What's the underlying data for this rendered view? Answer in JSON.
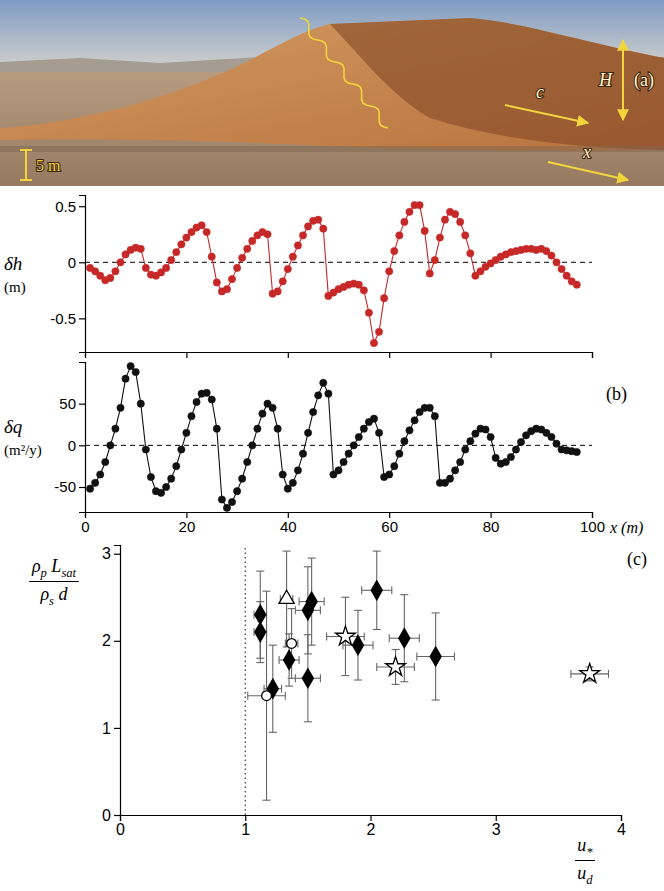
{
  "panel_a": {
    "panel_label": "(a)",
    "scale_label": "5 m",
    "labels": {
      "celerity": "c",
      "height": "H",
      "axis": "x"
    }
  },
  "chart_data": [
    {
      "type": "line",
      "panel_label": "(b)",
      "ylabel": [
        "δh",
        "(m)"
      ],
      "x": [
        1,
        2,
        3,
        4,
        5,
        6,
        7,
        8,
        9,
        10,
        11,
        12,
        13,
        14,
        15,
        16,
        17,
        18,
        19,
        20,
        21,
        22,
        23,
        24,
        25,
        26,
        27,
        28,
        29,
        30,
        31,
        32,
        33,
        34,
        35,
        36,
        37,
        38,
        39,
        40,
        41,
        42,
        43,
        44,
        45,
        46,
        47,
        48,
        49,
        50,
        51,
        52,
        53,
        54,
        55,
        56,
        57,
        58,
        59,
        60,
        61,
        62,
        63,
        64,
        65,
        66,
        67,
        68,
        69,
        70,
        71,
        72,
        73,
        74,
        75,
        76,
        77,
        78,
        79,
        80,
        81,
        82,
        83,
        84,
        85,
        86,
        87,
        88,
        89,
        90,
        91,
        92,
        93,
        94,
        95,
        96,
        97
      ],
      "series": [
        {
          "color": "#c62828",
          "marker": "circle",
          "line_style": "solid",
          "values": [
            -0.05,
            -0.08,
            -0.12,
            -0.16,
            -0.14,
            -0.08,
            0.0,
            0.07,
            0.11,
            0.13,
            0.12,
            -0.05,
            -0.11,
            -0.12,
            -0.09,
            -0.05,
            0.02,
            0.09,
            0.16,
            0.22,
            0.27,
            0.31,
            0.33,
            0.27,
            0.05,
            -0.18,
            -0.26,
            -0.24,
            -0.15,
            -0.05,
            0.04,
            0.12,
            0.19,
            0.24,
            0.27,
            0.25,
            -0.28,
            -0.26,
            -0.17,
            -0.06,
            0.05,
            0.15,
            0.24,
            0.32,
            0.37,
            0.38,
            0.3,
            -0.3,
            -0.27,
            -0.24,
            -0.22,
            -0.2,
            -0.19,
            -0.2,
            -0.25,
            -0.45,
            -0.72,
            -0.62,
            -0.32,
            -0.08,
            0.1,
            0.24,
            0.36,
            0.45,
            0.51,
            0.51,
            0.28,
            -0.1,
            0.02,
            0.22,
            0.38,
            0.45,
            0.43,
            0.36,
            0.24,
            0.08,
            -0.12,
            -0.08,
            -0.04,
            -0.01,
            0.02,
            0.05,
            0.07,
            0.09,
            0.1,
            0.11,
            0.12,
            0.12,
            0.11,
            0.12,
            0.1,
            0.06,
            0.0,
            -0.06,
            -0.12,
            -0.17,
            -0.2
          ]
        }
      ],
      "xlim": [
        0,
        100
      ],
      "xticks": [
        0,
        20,
        40,
        60,
        80,
        100
      ],
      "ylim": [
        -0.8,
        0.6
      ],
      "yticks": [
        -0.5,
        0,
        0.5
      ],
      "hline": {
        "y": 0,
        "line_style": "dashed"
      },
      "tick_labels": "y"
    },
    {
      "type": "line",
      "ylabel": [
        "δq",
        "(m²/y)"
      ],
      "xlabel": "x (m)",
      "x": [
        1,
        2,
        3,
        4,
        5,
        6,
        7,
        8,
        9,
        10,
        11,
        12,
        13,
        14,
        15,
        16,
        17,
        18,
        19,
        20,
        21,
        22,
        23,
        24,
        25,
        26,
        27,
        28,
        29,
        30,
        31,
        32,
        33,
        34,
        35,
        36,
        37,
        38,
        39,
        40,
        41,
        42,
        43,
        44,
        45,
        46,
        47,
        48,
        49,
        50,
        51,
        52,
        53,
        54,
        55,
        56,
        57,
        58,
        59,
        60,
        61,
        62,
        63,
        64,
        65,
        66,
        67,
        68,
        69,
        70,
        71,
        72,
        73,
        74,
        75,
        76,
        77,
        78,
        79,
        80,
        81,
        82,
        83,
        84,
        85,
        86,
        87,
        88,
        89,
        90,
        91,
        92,
        93,
        94,
        95,
        96,
        97
      ],
      "series": [
        {
          "color": "#111111",
          "marker": "circle",
          "line_style": "solid",
          "values": [
            -52,
            -45,
            -35,
            -20,
            0,
            20,
            45,
            80,
            95,
            88,
            50,
            -5,
            -38,
            -55,
            -57,
            -50,
            -40,
            -25,
            -5,
            15,
            35,
            52,
            62,
            63,
            55,
            20,
            -65,
            -75,
            -68,
            -55,
            -40,
            -20,
            0,
            20,
            38,
            50,
            45,
            20,
            -35,
            -52,
            -45,
            -30,
            -10,
            15,
            40,
            60,
            75,
            62,
            -35,
            -30,
            -20,
            -10,
            0,
            10,
            20,
            28,
            32,
            15,
            -38,
            -35,
            -25,
            -10,
            5,
            18,
            30,
            40,
            45,
            45,
            35,
            -45,
            -45,
            -40,
            -30,
            -20,
            -5,
            5,
            14,
            20,
            19,
            10,
            -15,
            -22,
            -20,
            -14,
            -5,
            4,
            12,
            17,
            20,
            19,
            15,
            10,
            2,
            -5,
            -6,
            -7,
            -8
          ]
        }
      ],
      "xlim": [
        0,
        100
      ],
      "xticks": [
        0,
        20,
        40,
        60,
        80,
        100
      ],
      "ylim": [
        -80,
        100
      ],
      "yticks": [
        -50,
        0,
        50
      ],
      "hline": {
        "y": 0,
        "line_style": "dashed"
      }
    },
    {
      "type": "scatter",
      "panel_label": "(c)",
      "xlabel": {
        "numerator": [
          {
            "text": "u"
          },
          {
            "sub": "*"
          }
        ],
        "denominator": [
          {
            "text": "u"
          },
          {
            "sub": "d"
          }
        ]
      },
      "ylabel": {
        "numerator": [
          {
            "text": "ρ"
          },
          {
            "sub": "p"
          },
          {
            "text": " L"
          },
          {
            "sub": "sat"
          }
        ],
        "denominator": [
          {
            "text": "ρ"
          },
          {
            "sub": "s"
          },
          {
            "text": " d"
          }
        ]
      },
      "series": [
        {
          "marker": "diamond",
          "color": "#000000",
          "x": [
            1.12,
            1.12,
            1.22,
            1.35,
            1.5,
            1.5,
            1.53,
            1.9,
            2.05,
            2.27,
            2.52
          ],
          "values": [
            2.3,
            2.1,
            1.45,
            1.78,
            2.35,
            1.57,
            2.45,
            1.95,
            2.58,
            2.03,
            1.82
          ],
          "x_error": [
            0.05,
            0.05,
            0.07,
            0.08,
            0.1,
            0.1,
            0.1,
            0.12,
            0.12,
            0.12,
            0.15
          ],
          "y_error": [
            0.5,
            0.35,
            0.5,
            0.3,
            0.5,
            0.5,
            0.5,
            0.4,
            0.45,
            0.5,
            0.5
          ]
        },
        {
          "marker": "triangle-open",
          "color": "#000000",
          "x": [
            1.33
          ],
          "values": [
            2.48
          ],
          "x_error": [
            0.05
          ],
          "y_error": [
            0.55
          ]
        },
        {
          "marker": "circle-open",
          "color": "#000000",
          "x": [
            1.17,
            1.37
          ],
          "values": [
            1.37,
            1.97
          ],
          "x_error": [
            0.15,
            0.05
          ],
          "y_error": [
            1.2,
            0.4
          ]
        },
        {
          "marker": "star-open",
          "color": "#000000",
          "x": [
            1.8,
            2.2,
            3.75
          ],
          "values": [
            2.05,
            1.7,
            1.62
          ],
          "x_error": [
            0.15,
            0.15,
            0.15
          ],
          "y_error": [
            0.45,
            0.2,
            0.08
          ]
        }
      ],
      "xlim": [
        0,
        4
      ],
      "xticks": [
        0,
        1,
        2,
        3,
        4
      ],
      "ylim": [
        0,
        3.1
      ],
      "yticks": [
        0,
        1,
        2,
        3
      ],
      "vline": {
        "x": 1,
        "line_style": "dotted"
      }
    }
  ]
}
